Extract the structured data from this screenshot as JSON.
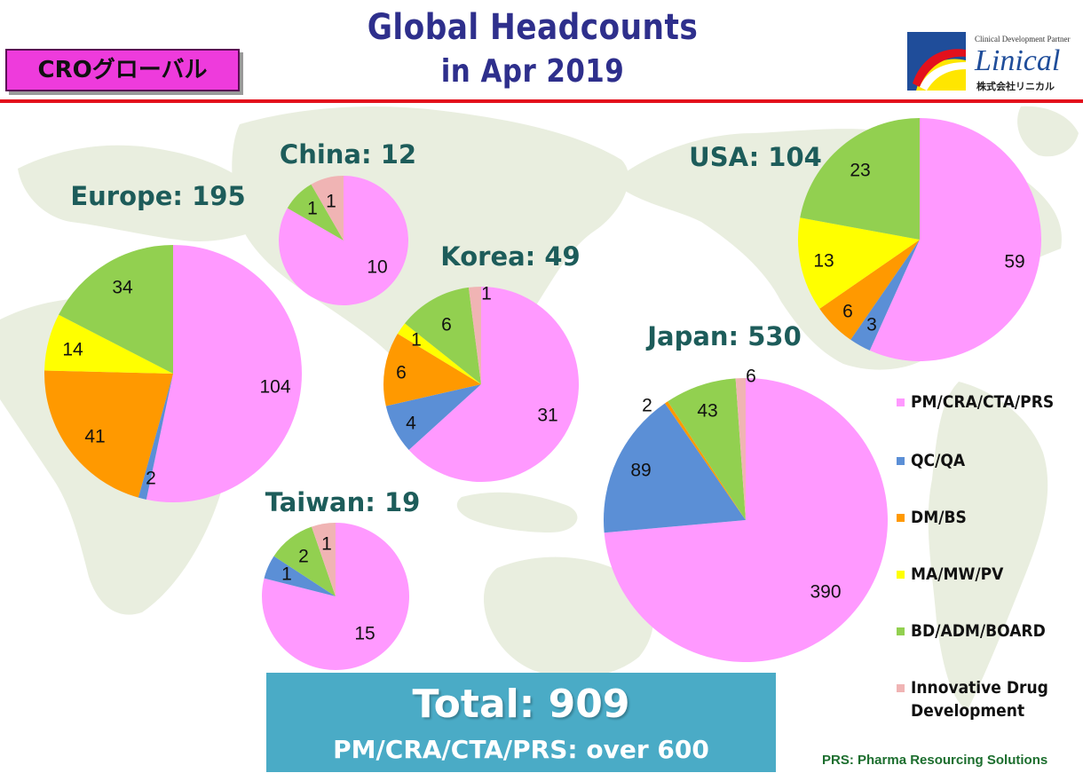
{
  "header": {
    "title_line1": "Global Headcounts",
    "title_line2": "in Apr 2019",
    "badge": "CROグローバル"
  },
  "logo": {
    "tagline": "Clinical Development Partner",
    "name": "Linical",
    "sub": "株式会社リニカル"
  },
  "colors": {
    "PM": "#ff99ff",
    "QC": "#5b8fd6",
    "DM": "#ff9900",
    "MA": "#ffff00",
    "BD": "#92d050",
    "ID": "#f0b4b4",
    "title": "#2e2f8c",
    "region_label": "#1d5c5a",
    "accent_red": "#e3101c",
    "total_box": "#4aabc6"
  },
  "legend": [
    {
      "key": "PM",
      "label": "PM/CRA/CTA/PRS"
    },
    {
      "key": "QC",
      "label": "QC/QA"
    },
    {
      "key": "DM",
      "label": "DM/BS"
    },
    {
      "key": "MA",
      "label": "MA/MW/PV"
    },
    {
      "key": "BD",
      "label": "BD/ADM/BOARD"
    },
    {
      "key": "ID",
      "label": "Innovative Drug Development"
    }
  ],
  "total": {
    "main": "Total: 909",
    "sub": "PM/CRA/CTA/PRS: over 600"
  },
  "footnote": "PRS: Pharma Resourcing Solutions",
  "chart_data": [
    {
      "type": "pie",
      "title": "Europe: 195",
      "categories": [
        "PM/CRA/CTA/PRS",
        "QC/QA",
        "DM/BS",
        "MA/MW/PV",
        "BD/ADM/BOARD",
        "Innovative Drug Development"
      ],
      "values": [
        104,
        2,
        41,
        14,
        34,
        0
      ]
    },
    {
      "type": "pie",
      "title": "China: 12",
      "categories": [
        "PM/CRA/CTA/PRS",
        "QC/QA",
        "DM/BS",
        "MA/MW/PV",
        "BD/ADM/BOARD",
        "Innovative Drug Development"
      ],
      "values": [
        10,
        0,
        0,
        0,
        1,
        1
      ]
    },
    {
      "type": "pie",
      "title": "Korea: 49",
      "categories": [
        "PM/CRA/CTA/PRS",
        "QC/QA",
        "DM/BS",
        "MA/MW/PV",
        "BD/ADM/BOARD",
        "Innovative Drug Development"
      ],
      "values": [
        31,
        4,
        6,
        1,
        6,
        1
      ]
    },
    {
      "type": "pie",
      "title": "Taiwan: 19",
      "categories": [
        "PM/CRA/CTA/PRS",
        "QC/QA",
        "DM/BS",
        "MA/MW/PV",
        "BD/ADM/BOARD",
        "Innovative Drug Development"
      ],
      "values": [
        15,
        1,
        0,
        0,
        2,
        1
      ]
    },
    {
      "type": "pie",
      "title": "USA: 104",
      "categories": [
        "PM/CRA/CTA/PRS",
        "QC/QA",
        "DM/BS",
        "MA/MW/PV",
        "BD/ADM/BOARD",
        "Innovative Drug Development"
      ],
      "values": [
        59,
        3,
        6,
        13,
        23,
        0
      ]
    },
    {
      "type": "pie",
      "title": "Japan: 530",
      "categories": [
        "PM/CRA/CTA/PRS",
        "QC/QA",
        "DM/BS",
        "MA/MW/PV",
        "BD/ADM/BOARD",
        "Innovative Drug Development"
      ],
      "values": [
        390,
        89,
        2,
        0,
        43,
        6
      ]
    }
  ]
}
